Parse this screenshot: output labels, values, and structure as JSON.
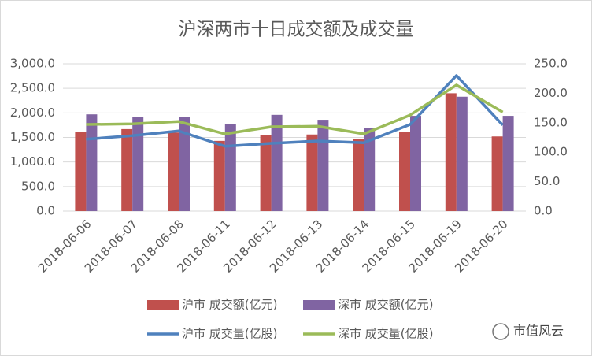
{
  "chart_data": {
    "type": "bar",
    "title": "沪深两市十日成交额及成交量",
    "categories": [
      "2018-06-06",
      "2018-06-07",
      "2018-06-08",
      "2018-06-11",
      "2018-06-12",
      "2018-06-13",
      "2018-06-14",
      "2018-06-15",
      "2018-06-19",
      "2018-06-20"
    ],
    "series": [
      {
        "name": "沪市 成交额(亿元)",
        "type": "bar",
        "color": "#c0504d",
        "values": [
          1620,
          1670,
          1600,
          1430,
          1540,
          1560,
          1470,
          1620,
          2400,
          1520
        ]
      },
      {
        "name": "深市 成交额(亿元)",
        "type": "bar",
        "color": "#8064a2",
        "values": [
          1970,
          1920,
          1920,
          1780,
          1960,
          1860,
          1700,
          1940,
          2330,
          1940
        ]
      },
      {
        "name": "沪市 成交量(亿股)",
        "type": "line",
        "axis": "y2",
        "color": "#4f81bd",
        "values": [
          122,
          128,
          136,
          110,
          115,
          119,
          116,
          147,
          230,
          146
        ]
      },
      {
        "name": "深市 成交量(亿股)",
        "type": "line",
        "axis": "y2",
        "color": "#9bbb59",
        "values": [
          147,
          148,
          152,
          131,
          143,
          144,
          131,
          163,
          214,
          168
        ]
      }
    ],
    "ylim": [
      0,
      3000
    ],
    "yticks": [
      {
        "value": 0,
        "label": "0.0"
      },
      {
        "value": 500,
        "label": "500.0"
      },
      {
        "value": 1000,
        "label": "1,000.0"
      },
      {
        "value": 1500,
        "label": "1,500.0"
      },
      {
        "value": 2000,
        "label": "2,000.0"
      },
      {
        "value": 2500,
        "label": "2,500.0"
      },
      {
        "value": 3000,
        "label": "3,000.0"
      }
    ],
    "y2lim": [
      0,
      250
    ],
    "y2ticks": [
      {
        "value": 0,
        "label": "0.0"
      },
      {
        "value": 50,
        "label": "50.0"
      },
      {
        "value": 100,
        "label": "100.0"
      },
      {
        "value": 150,
        "label": "150.0"
      },
      {
        "value": 200,
        "label": "200.0"
      },
      {
        "value": 250,
        "label": "250.0"
      }
    ],
    "grid": true,
    "watermark": "市值风云"
  }
}
